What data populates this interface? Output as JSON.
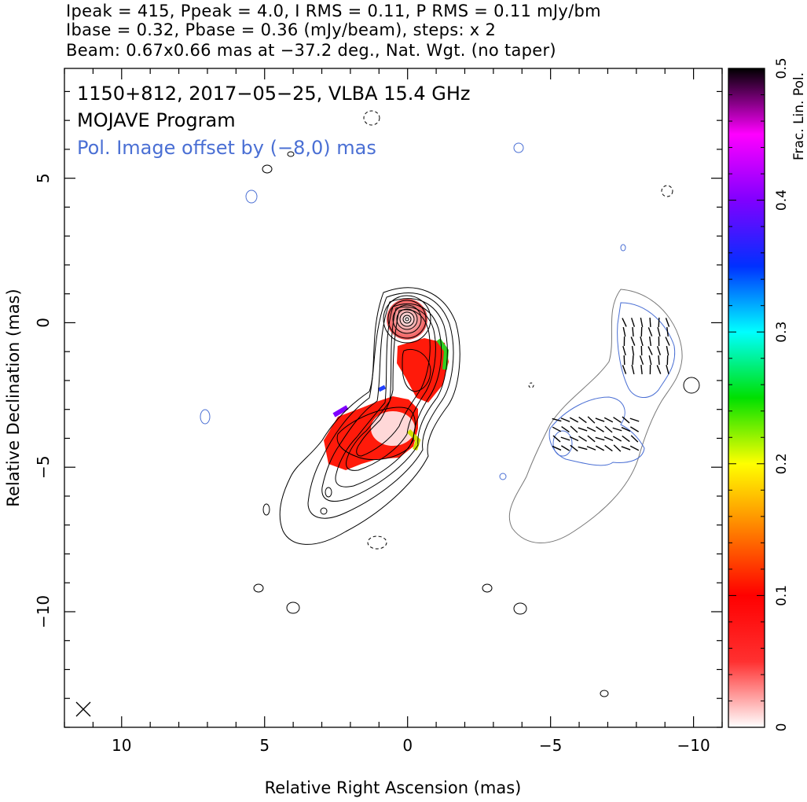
{
  "header": {
    "line1": "Ipeak = 415, Ppeak = 4.0, I RMS = 0.11, P RMS = 0.11 mJy/bm",
    "line2": "Ibase = 0.32, Pbase = 0.36 (mJy/beam), steps: x 2",
    "line3": "Beam: 0.67x0.66 mas at −37.2 deg., Nat. Wgt. (no taper)"
  },
  "chart_data": {
    "type": "contour",
    "source": "1150+812",
    "date": "2017-05-25",
    "instrument": "VLBA 15.4 GHz",
    "annotations": [
      "1150+812, 2017−05−25, VLBA 15.4 GHz",
      "MOJAVE Program",
      "Pol. Image offset by (−8,0) mas"
    ],
    "xlabel": "Relative Right Ascension (mas)",
    "ylabel": "Relative Declination (mas)",
    "xlim": [
      12,
      -11
    ],
    "ylim": [
      -14,
      8.8
    ],
    "x_ticks": [
      10,
      5,
      0,
      -5,
      -10
    ],
    "x_tick_labels": [
      "10",
      "5",
      "0",
      "−5",
      "−10"
    ],
    "y_ticks": [
      5,
      0,
      -5,
      -10
    ],
    "y_tick_labels": [
      "5",
      "0",
      "−5",
      "−10"
    ],
    "colorbar": {
      "label": "Frac. Lin. Pol.",
      "range": [
        0,
        0.5
      ],
      "ticks": [
        0,
        0.1,
        0.2,
        0.3,
        0.4,
        0.5
      ],
      "tick_labels": [
        "0",
        "0.1",
        "0.2",
        "0.3",
        "0.4",
        "0.5"
      ]
    },
    "ipeak_mJy_per_beam": 415,
    "ppeak_mJy_per_beam": 4.0,
    "i_rms": 0.11,
    "p_rms": 0.11,
    "ibase": 0.32,
    "pbase": 0.36,
    "contour_step_factor": 2,
    "beam": {
      "major_mas": 0.67,
      "minor_mas": 0.66,
      "pa_deg": -37.2
    },
    "weighting": "Natural",
    "pol_offset_mas": [
      -8,
      0
    ],
    "colors": {
      "intensity_contour": "#000000",
      "pol_contour": "#4a6fd4",
      "total_offset_contour": "#777777",
      "annotation_blue": "#4a6fd4"
    }
  }
}
